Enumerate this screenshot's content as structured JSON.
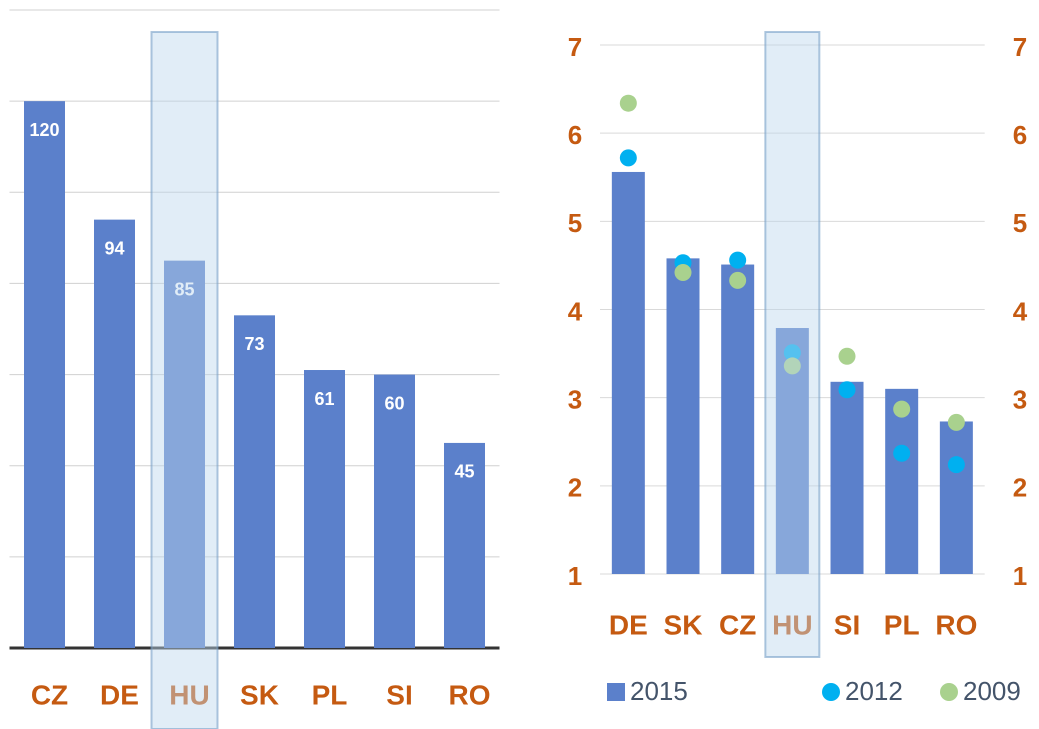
{
  "chart_data": [
    {
      "type": "bar",
      "categories": [
        "CZ",
        "DE",
        "HU",
        "SK",
        "PL",
        "SI",
        "RO"
      ],
      "values": [
        120,
        94,
        85,
        73,
        61,
        60,
        45
      ],
      "color": "#5b80cb",
      "ylim": [
        0,
        140
      ],
      "yticks": [
        0,
        20,
        40,
        60,
        80,
        100,
        120,
        140
      ],
      "grid": true,
      "highlight": "HU"
    },
    {
      "type": "bar",
      "categories": [
        "DE",
        "SK",
        "CZ",
        "HU",
        "SI",
        "PL",
        "RO"
      ],
      "series": [
        {
          "name": "2015",
          "type": "bar",
          "color": "#5b80cb",
          "values": [
            5.56,
            4.58,
            4.51,
            3.79,
            3.18,
            3.1,
            2.73
          ]
        },
        {
          "name": "2012",
          "type": "scatter",
          "color": "#00b0f0",
          "values": [
            5.72,
            4.53,
            4.56,
            3.51,
            3.09,
            2.37,
            2.24
          ]
        },
        {
          "name": "2009",
          "type": "scatter",
          "color": "#a9d18e",
          "values": [
            6.34,
            4.42,
            4.33,
            3.36,
            3.47,
            2.87,
            2.72
          ]
        }
      ],
      "ylim": [
        1,
        7
      ],
      "yticks": [
        1,
        2,
        3,
        4,
        5,
        6,
        7
      ],
      "y2lim": [
        1,
        7
      ],
      "y2ticks": [
        1,
        2,
        3,
        4,
        5,
        6,
        7
      ],
      "grid": true,
      "highlight": "HU"
    }
  ]
}
